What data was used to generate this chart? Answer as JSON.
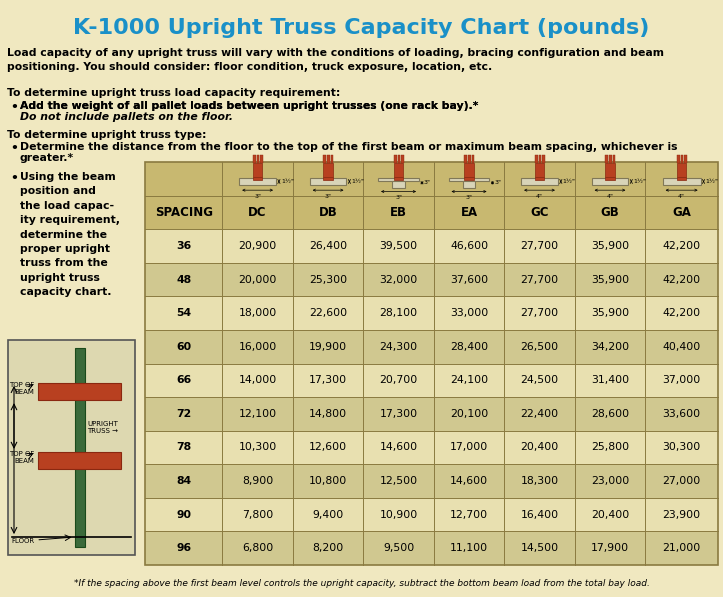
{
  "title": "K-1000 Upright Truss Capacity Chart (pounds)",
  "title_color": "#1a90c8",
  "bg_color": "#f0e8c0",
  "para1": "Load capacity of any upright truss will vary with the conditions of loading, bracing configuration and beam\npositioning. You should consider: floor condition, truck exposure, location, etc.",
  "para2_head": "To determine upright truss load capacity requirement:",
  "para2_bullet": "Add the weight of all pallet loads between upright trusses (one rack bay).*",
  "para2_italic": " Do not include pallets on the\n  floor.",
  "para3_head": "To determine upright truss type:",
  "para3_bullet1a": "Determine the distance from the floor to the top of the first beam or maximum beam spacing, whichever is",
  "para3_bullet1b": "greater.*",
  "para3_bullet2": "Using the beam\nposition and\nthe load capac-\nity requirement,\ndetermine the\nproper upright\ntruss from the\nupright truss\ncapacity chart.",
  "footnote": "*If the spacing above the first beam level controls the upright capacity, subtract the bottom beam load from the total bay load.",
  "columns": [
    "SPACING",
    "DC",
    "DB",
    "EB",
    "EA",
    "GC",
    "GB",
    "GA"
  ],
  "rows": [
    [
      36,
      20900,
      26400,
      39500,
      46600,
      27700,
      35900,
      42200
    ],
    [
      48,
      20000,
      25300,
      32000,
      37600,
      27700,
      35900,
      42200
    ],
    [
      54,
      18000,
      22600,
      28100,
      33000,
      27700,
      35900,
      42200
    ],
    [
      60,
      16000,
      19900,
      24300,
      28400,
      26500,
      34200,
      40400
    ],
    [
      66,
      14000,
      17300,
      20700,
      24100,
      24500,
      31400,
      37000
    ],
    [
      72,
      12100,
      14800,
      17300,
      20100,
      22400,
      28600,
      33600
    ],
    [
      78,
      10300,
      12600,
      14600,
      17000,
      20400,
      25800,
      30300
    ],
    [
      84,
      8900,
      10800,
      12500,
      14600,
      18300,
      23000,
      27000
    ],
    [
      90,
      7800,
      9400,
      10900,
      12700,
      16400,
      20400,
      23900
    ],
    [
      96,
      6800,
      8200,
      9500,
      11100,
      14500,
      17900,
      21000
    ]
  ],
  "header_bg": "#c8b870",
  "row_bg_light": "#e8e0b0",
  "row_bg_dark": "#d0c890",
  "table_border": "#8a7a40",
  "beam_colors": {
    "DC": {
      "type": "box",
      "w": "3\"",
      "h": "1½\""
    },
    "DB": {
      "type": "box",
      "w": "3\"",
      "h": "1½\""
    },
    "EB": {
      "type": "T",
      "w": "3\"",
      "h": "3\""
    },
    "EA": {
      "type": "T",
      "w": "3\"",
      "h": "3\""
    },
    "GC": {
      "type": "box",
      "w": "4\"",
      "h": "1½\""
    },
    "GB": {
      "type": "box",
      "w": "4\"",
      "h": "1½\""
    },
    "GA": {
      "type": "box",
      "w": "4\"",
      "h": "1½\""
    }
  },
  "rust_color": "#b84020",
  "rust_dark": "#8a2810",
  "green_color": "#3a6a3a",
  "green_dark": "#1a4a1a",
  "diag_bg": "#ddd8b0",
  "diag_border": "#555555"
}
